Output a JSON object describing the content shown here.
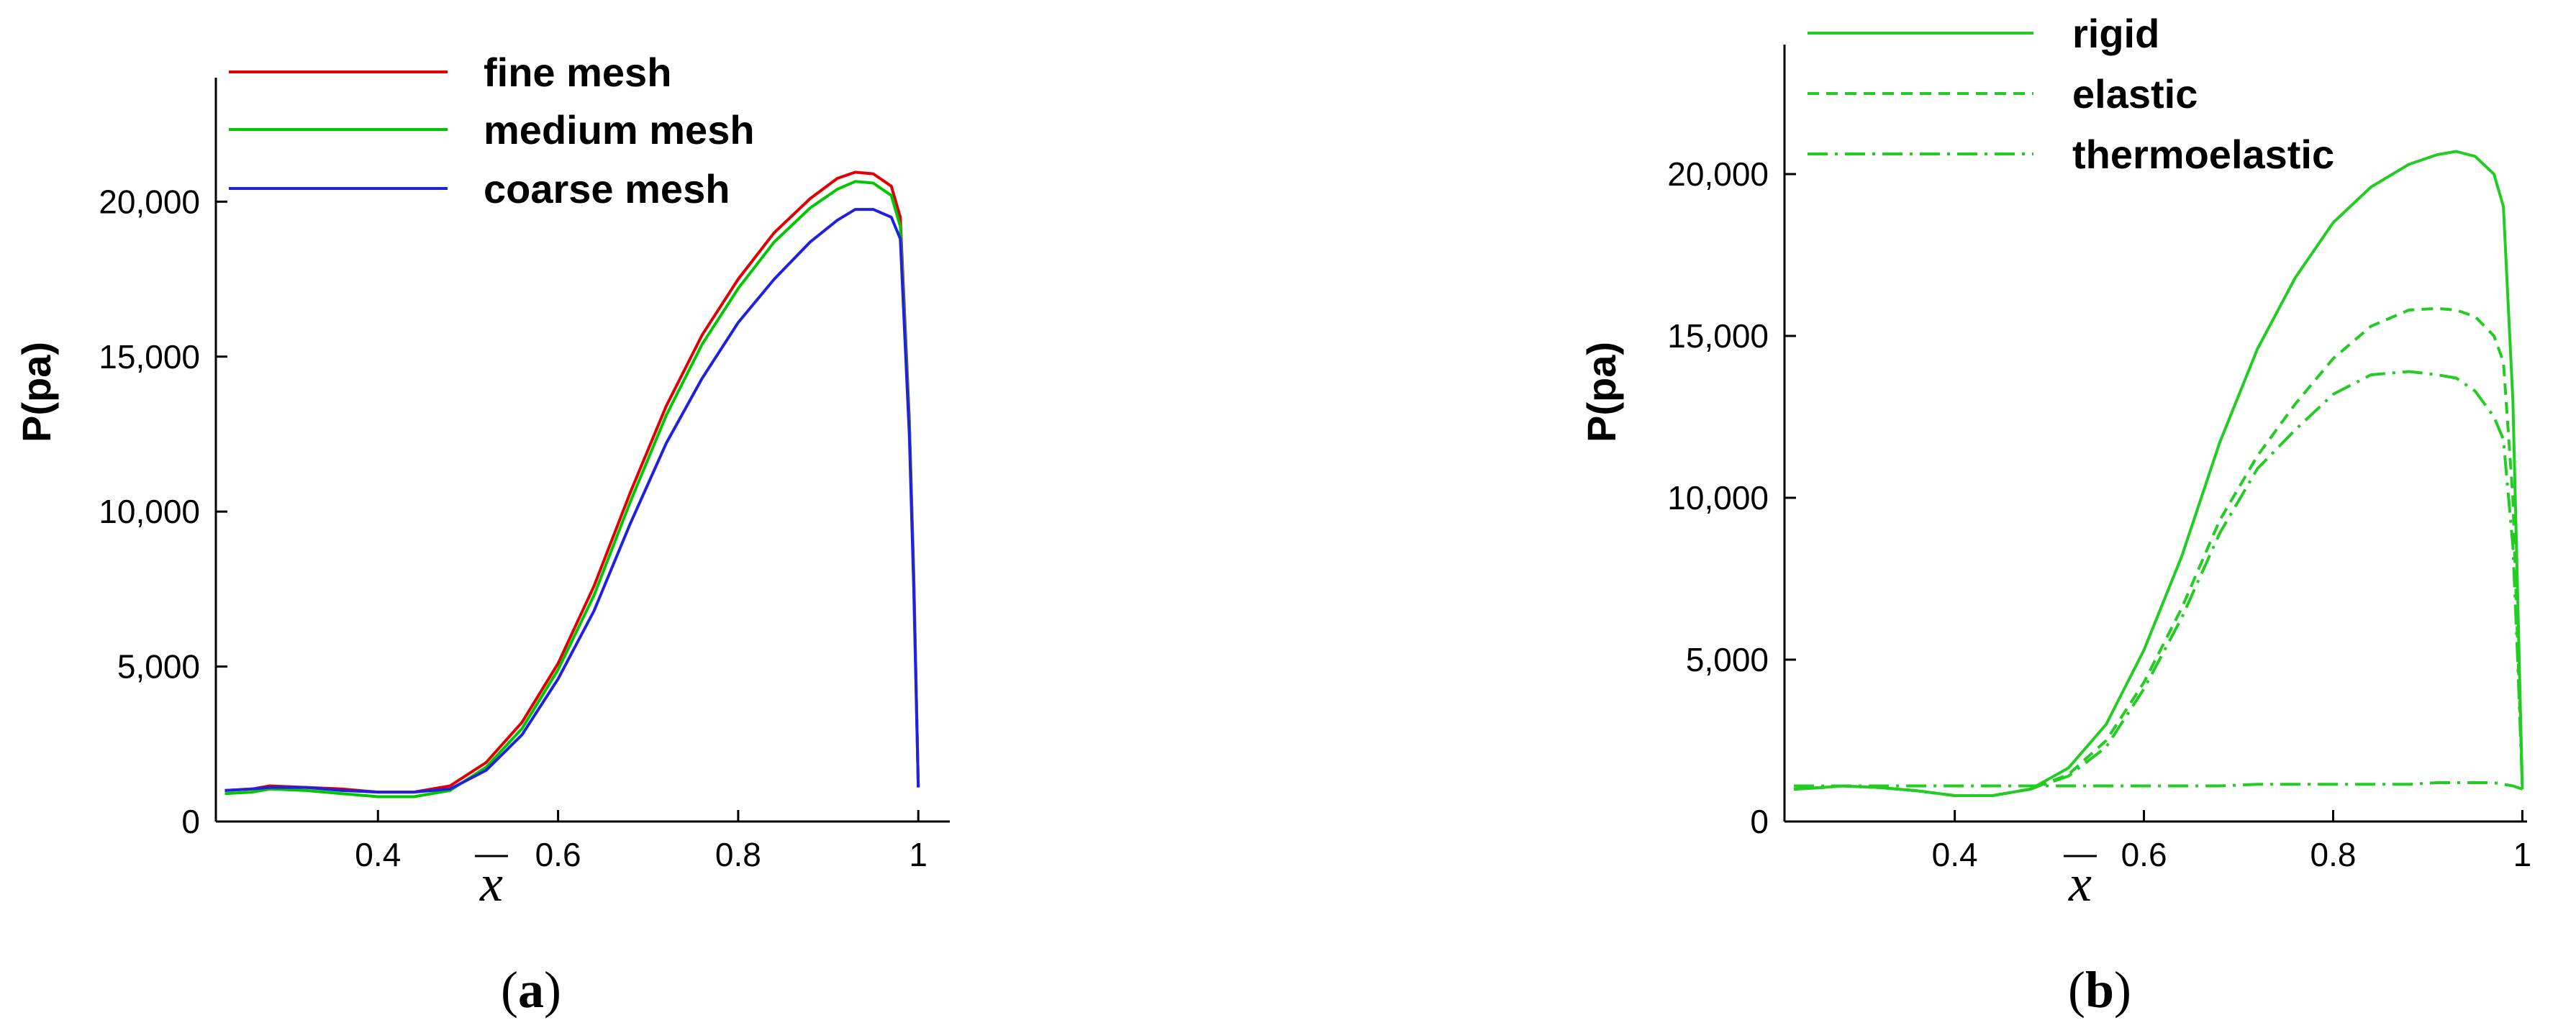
{
  "chart_data": [
    {
      "type": "line",
      "panel_label": "a",
      "xlabel": "x",
      "ylabel": "P(pa)",
      "xlim": [
        0.22,
        1.035
      ],
      "ylim": [
        0,
        24000
      ],
      "x_ticks": [
        "0.4",
        "0.6",
        "0.8",
        "1"
      ],
      "x_tick_values": [
        0.4,
        0.6,
        0.8,
        1.0
      ],
      "y_ticks": [
        "0",
        "5,000",
        "10,000",
        "15,000",
        "20,000"
      ],
      "y_tick_values": [
        0,
        5000,
        10000,
        15000,
        20000
      ],
      "grid": false,
      "legend_position": "top-left",
      "series": [
        {
          "name": "fine mesh",
          "color": "#e00000",
          "dash": "solid",
          "points": [
            [
              0.23,
              1000
            ],
            [
              0.26,
              1050
            ],
            [
              0.28,
              1150
            ],
            [
              0.32,
              1100
            ],
            [
              0.36,
              1050
            ],
            [
              0.4,
              950
            ],
            [
              0.44,
              950
            ],
            [
              0.48,
              1150
            ],
            [
              0.52,
              1900
            ],
            [
              0.56,
              3200
            ],
            [
              0.6,
              5100
            ],
            [
              0.64,
              7600
            ],
            [
              0.68,
              10600
            ],
            [
              0.72,
              13400
            ],
            [
              0.76,
              15700
            ],
            [
              0.8,
              17500
            ],
            [
              0.84,
              19000
            ],
            [
              0.88,
              20100
            ],
            [
              0.91,
              20750
            ],
            [
              0.93,
              20950
            ],
            [
              0.95,
              20900
            ],
            [
              0.97,
              20500
            ],
            [
              0.98,
              19500
            ],
            [
              0.99,
              13000
            ],
            [
              0.995,
              8000
            ],
            [
              1.0,
              1100
            ]
          ]
        },
        {
          "name": "medium mesh",
          "color": "#00c800",
          "dash": "solid",
          "points": [
            [
              0.23,
              900
            ],
            [
              0.26,
              950
            ],
            [
              0.28,
              1050
            ],
            [
              0.32,
              1000
            ],
            [
              0.36,
              900
            ],
            [
              0.4,
              800
            ],
            [
              0.44,
              800
            ],
            [
              0.48,
              1000
            ],
            [
              0.52,
              1750
            ],
            [
              0.56,
              3000
            ],
            [
              0.6,
              4900
            ],
            [
              0.64,
              7300
            ],
            [
              0.68,
              10300
            ],
            [
              0.72,
              13100
            ],
            [
              0.76,
              15400
            ],
            [
              0.8,
              17200
            ],
            [
              0.84,
              18700
            ],
            [
              0.88,
              19800
            ],
            [
              0.91,
              20400
            ],
            [
              0.93,
              20650
            ],
            [
              0.95,
              20600
            ],
            [
              0.97,
              20200
            ],
            [
              0.98,
              19200
            ],
            [
              0.99,
              12800
            ],
            [
              0.995,
              7800
            ],
            [
              1.0,
              1100
            ]
          ]
        },
        {
          "name": "coarse mesh",
          "color": "#2020e0",
          "dash": "solid",
          "points": [
            [
              0.23,
              1000
            ],
            [
              0.26,
              1050
            ],
            [
              0.28,
              1100
            ],
            [
              0.32,
              1100
            ],
            [
              0.36,
              1000
            ],
            [
              0.4,
              950
            ],
            [
              0.44,
              950
            ],
            [
              0.48,
              1050
            ],
            [
              0.52,
              1650
            ],
            [
              0.56,
              2800
            ],
            [
              0.6,
              4600
            ],
            [
              0.64,
              6800
            ],
            [
              0.68,
              9600
            ],
            [
              0.72,
              12200
            ],
            [
              0.76,
              14300
            ],
            [
              0.8,
              16100
            ],
            [
              0.84,
              17500
            ],
            [
              0.88,
              18700
            ],
            [
              0.91,
              19400
            ],
            [
              0.93,
              19750
            ],
            [
              0.95,
              19750
            ],
            [
              0.97,
              19500
            ],
            [
              0.98,
              18800
            ],
            [
              0.99,
              12500
            ],
            [
              0.995,
              7500
            ],
            [
              1.0,
              1100
            ]
          ]
        }
      ]
    },
    {
      "type": "line",
      "panel_label": "b",
      "xlabel": "x",
      "ylabel": "P(pa)",
      "xlim": [
        0.22,
        1.005
      ],
      "ylim": [
        0,
        24000
      ],
      "x_ticks": [
        "0.4",
        "0.6",
        "0.8",
        "1"
      ],
      "x_tick_values": [
        0.4,
        0.6,
        0.8,
        1.0
      ],
      "y_ticks": [
        "0",
        "5,000",
        "10,000",
        "15,000",
        "20,000"
      ],
      "y_tick_values": [
        0,
        5000,
        10000,
        15000,
        20000
      ],
      "grid": false,
      "legend_position": "top-left",
      "series": [
        {
          "name": "rigid",
          "color": "#22cc22",
          "dash": "solid",
          "points": [
            [
              0.23,
              1000
            ],
            [
              0.26,
              1050
            ],
            [
              0.28,
              1100
            ],
            [
              0.32,
              1050
            ],
            [
              0.36,
              950
            ],
            [
              0.4,
              800
            ],
            [
              0.44,
              800
            ],
            [
              0.48,
              1000
            ],
            [
              0.52,
              1650
            ],
            [
              0.56,
              3000
            ],
            [
              0.6,
              5300
            ],
            [
              0.64,
              8200
            ],
            [
              0.68,
              11700
            ],
            [
              0.72,
              14600
            ],
            [
              0.76,
              16800
            ],
            [
              0.8,
              18500
            ],
            [
              0.84,
              19600
            ],
            [
              0.88,
              20300
            ],
            [
              0.91,
              20600
            ],
            [
              0.93,
              20700
            ],
            [
              0.95,
              20550
            ],
            [
              0.97,
              20000
            ],
            [
              0.98,
              19000
            ],
            [
              0.99,
              13000
            ],
            [
              0.995,
              7000
            ],
            [
              1.0,
              1000
            ]
          ]
        },
        {
          "name": "elastic",
          "color": "#22cc22",
          "dash": "dashed",
          "points": [
            [
              0.23,
              1000
            ],
            [
              0.26,
              1050
            ],
            [
              0.28,
              1100
            ],
            [
              0.32,
              1050
            ],
            [
              0.36,
              950
            ],
            [
              0.4,
              800
            ],
            [
              0.44,
              800
            ],
            [
              0.48,
              1000
            ],
            [
              0.52,
              1450
            ],
            [
              0.56,
              2500
            ],
            [
              0.6,
              4300
            ],
            [
              0.64,
              6600
            ],
            [
              0.68,
              9300
            ],
            [
              0.72,
              11300
            ],
            [
              0.76,
              12900
            ],
            [
              0.8,
              14300
            ],
            [
              0.84,
              15300
            ],
            [
              0.88,
              15800
            ],
            [
              0.91,
              15850
            ],
            [
              0.93,
              15800
            ],
            [
              0.95,
              15600
            ],
            [
              0.97,
              15000
            ],
            [
              0.98,
              14200
            ],
            [
              0.99,
              10000
            ],
            [
              0.995,
              5500
            ],
            [
              1.0,
              1200
            ]
          ]
        },
        {
          "name": "thermoelastic",
          "color": "#22cc22",
          "dash": "dashdot",
          "points": [
            [
              0.23,
              1100
            ],
            [
              0.26,
              1100
            ],
            [
              0.28,
              1100
            ],
            [
              0.32,
              1100
            ],
            [
              0.36,
              1100
            ],
            [
              0.4,
              1100
            ],
            [
              0.44,
              1100
            ],
            [
              0.48,
              1100
            ],
            [
              0.52,
              1100
            ],
            [
              0.56,
              1100
            ],
            [
              0.6,
              1100
            ],
            [
              0.64,
              1100
            ],
            [
              0.68,
              1100
            ],
            [
              0.72,
              1150
            ],
            [
              0.76,
              1150
            ],
            [
              0.8,
              1150
            ],
            [
              0.84,
              1150
            ],
            [
              0.88,
              1150
            ],
            [
              0.91,
              1200
            ],
            [
              0.93,
              1200
            ],
            [
              0.95,
              1200
            ],
            [
              0.97,
              1200
            ],
            [
              0.98,
              1150
            ],
            [
              0.99,
              1100
            ],
            [
              1.0,
              1000
            ]
          ]
        },
        {
          "name": "",
          "color": "#22cc22",
          "dash": "dashdot",
          "points": [
            [
              0.23,
              1000
            ],
            [
              0.26,
              1050
            ],
            [
              0.28,
              1100
            ],
            [
              0.32,
              1050
            ],
            [
              0.36,
              950
            ],
            [
              0.4,
              800
            ],
            [
              0.44,
              800
            ],
            [
              0.48,
              1000
            ],
            [
              0.52,
              1400
            ],
            [
              0.56,
              2300
            ],
            [
              0.6,
              4100
            ],
            [
              0.64,
              6300
            ],
            [
              0.68,
              8900
            ],
            [
              0.72,
              10900
            ],
            [
              0.76,
              12100
            ],
            [
              0.8,
              13200
            ],
            [
              0.84,
              13800
            ],
            [
              0.88,
              13900
            ],
            [
              0.91,
              13800
            ],
            [
              0.93,
              13700
            ],
            [
              0.95,
              13300
            ],
            [
              0.97,
              12500
            ],
            [
              0.98,
              11800
            ],
            [
              0.99,
              8500
            ],
            [
              0.995,
              5000
            ],
            [
              1.0,
              1100
            ]
          ]
        }
      ]
    }
  ],
  "captions": [
    "(a)",
    "(b)"
  ]
}
